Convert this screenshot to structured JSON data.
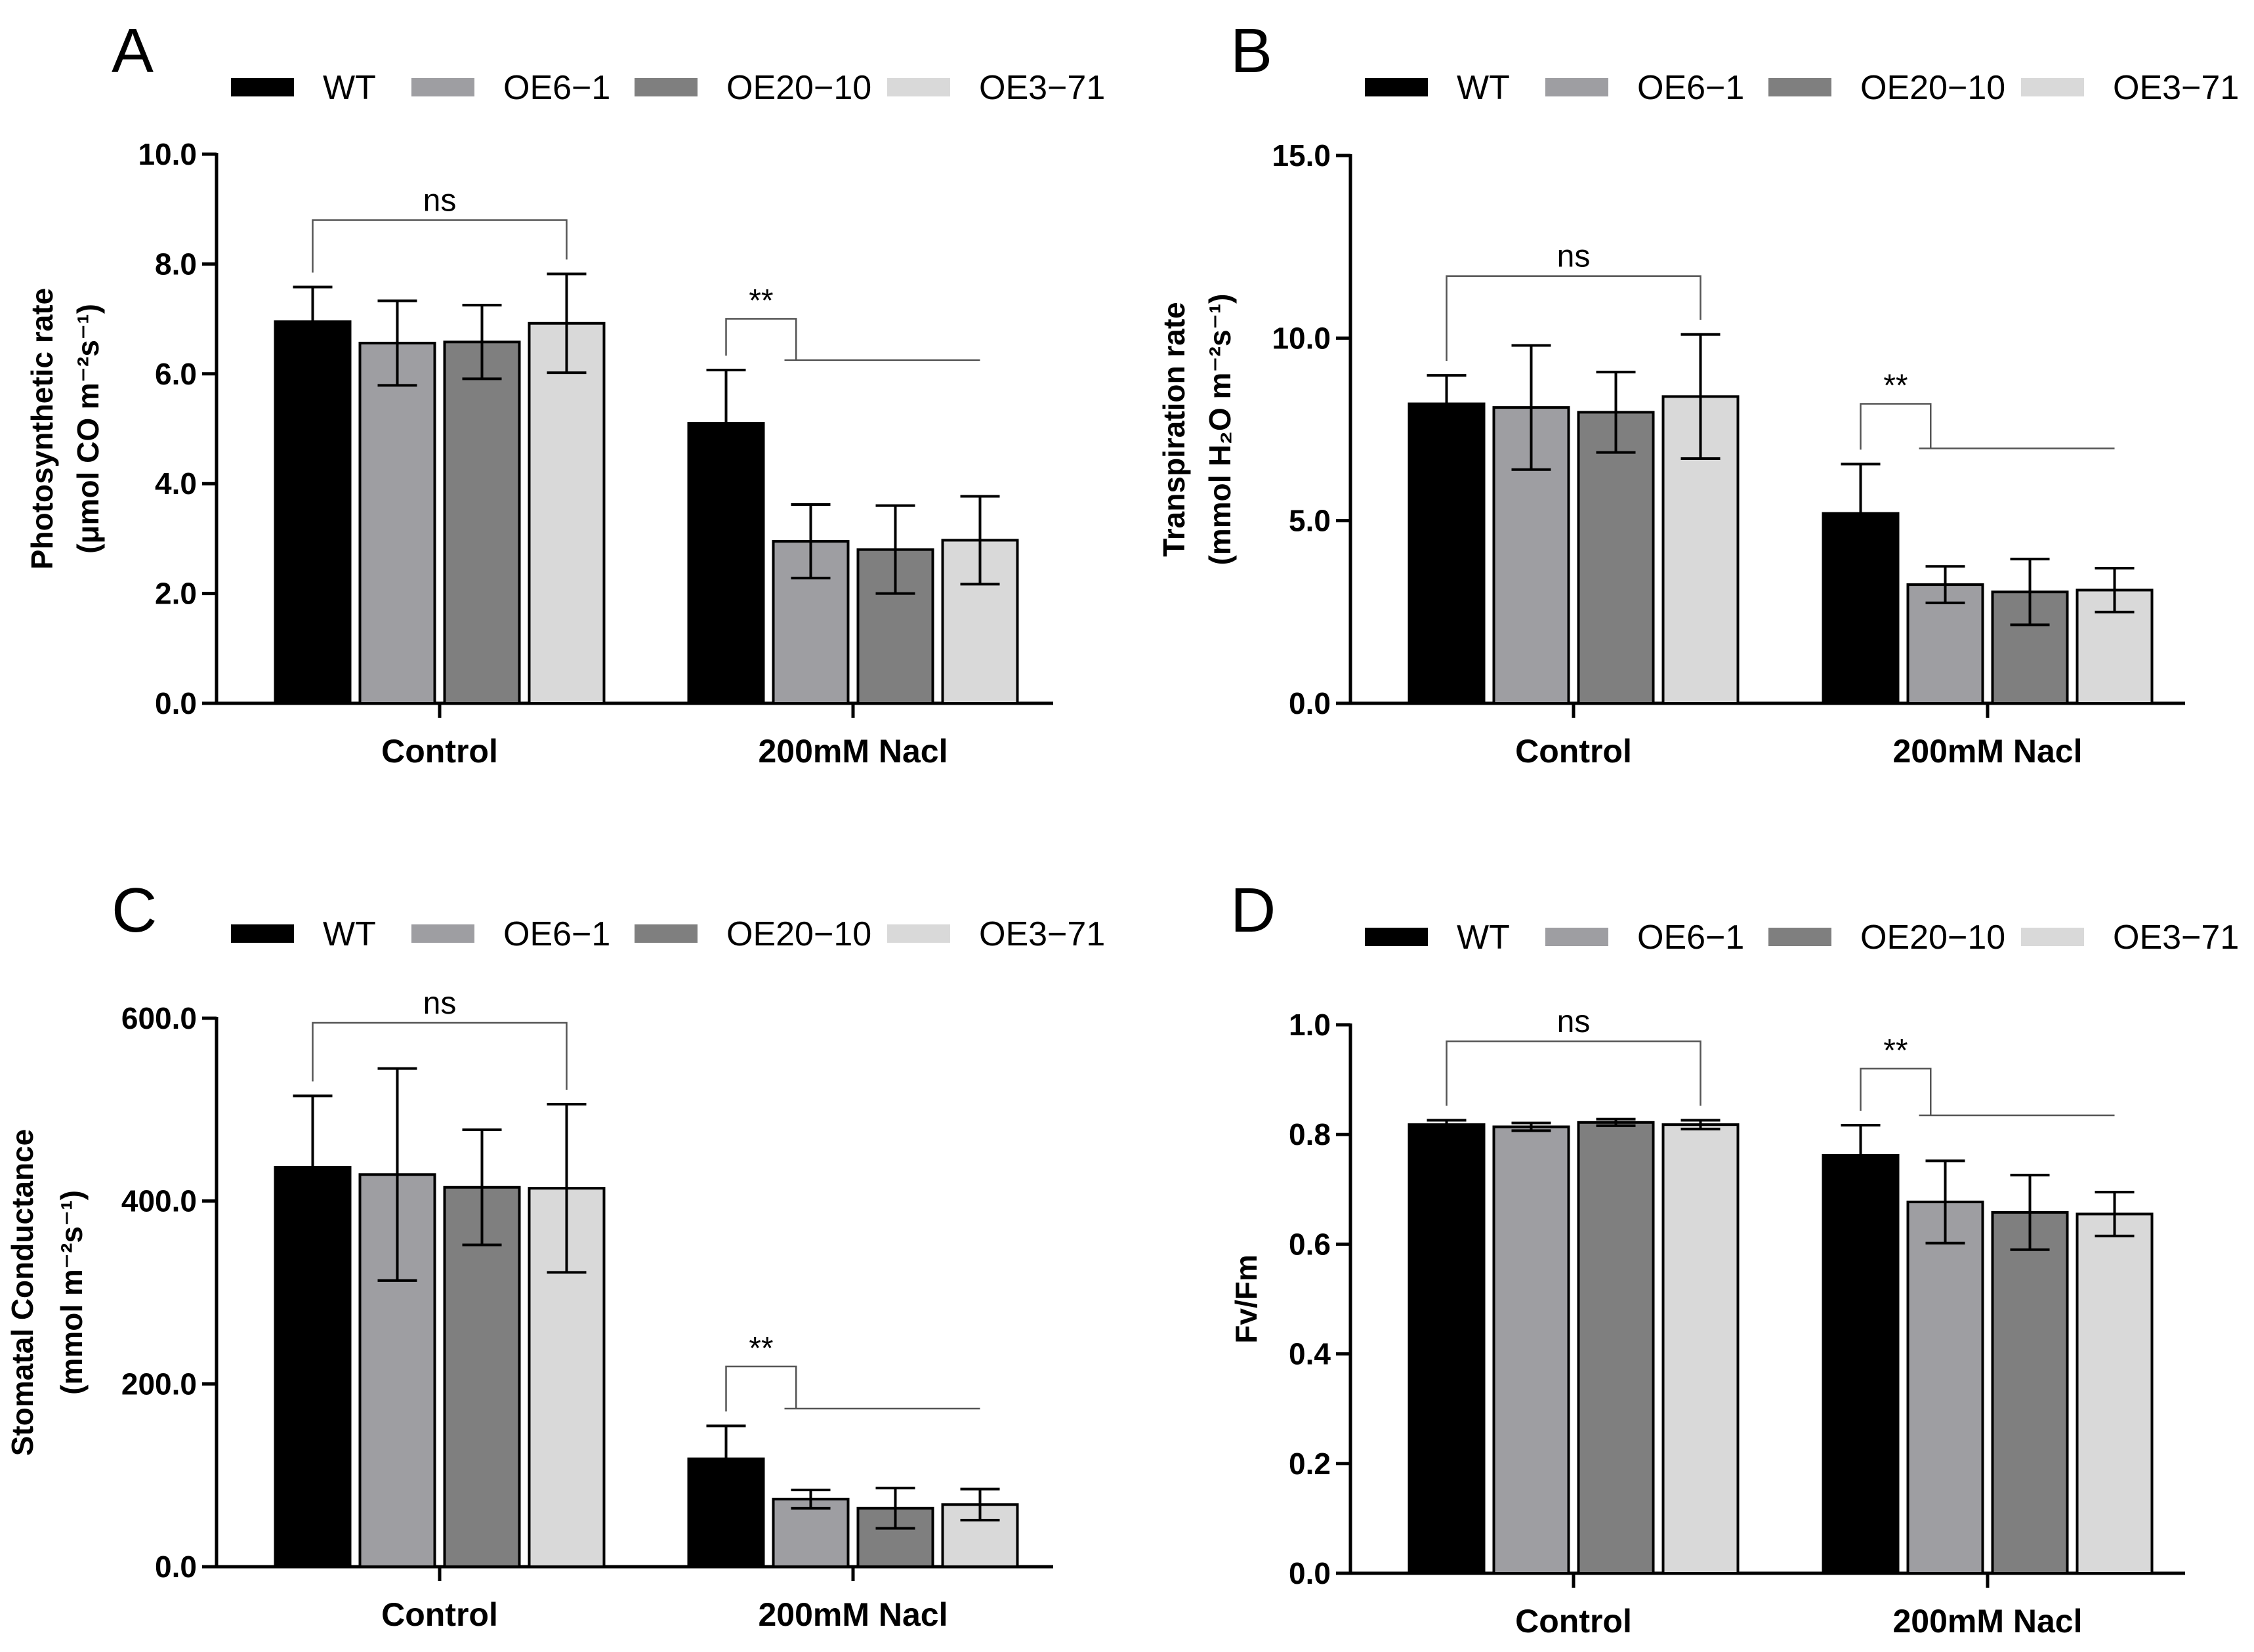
{
  "legend": [
    "WT",
    "OE6−1",
    "OE20−10",
    "OE3−71"
  ],
  "series_colors": [
    "#000000",
    "#9e9ea2",
    "#7f7f7f",
    "#d9d9d9"
  ],
  "chart_data": [
    {
      "panel": "A",
      "type": "bar",
      "categories": [
        "Control",
        "200mM Nacl"
      ],
      "ylabel_lines": [
        "Photosynthetic rate",
        "(μmol CO m⁻²s⁻¹)"
      ],
      "ylim": [
        0,
        10
      ],
      "yticks": [
        0,
        2,
        4,
        6,
        8,
        10
      ],
      "tick_labels": [
        "0.0",
        "2.0",
        "4.0",
        "6.0",
        "8.0",
        "10.0"
      ],
      "series": [
        {
          "name": "WT",
          "values": [
            6.95,
            5.1
          ],
          "errors": [
            0.63,
            0.97
          ]
        },
        {
          "name": "OE6−1",
          "values": [
            6.56,
            2.95
          ],
          "errors": [
            0.77,
            0.67
          ]
        },
        {
          "name": "OE20−10",
          "values": [
            6.58,
            2.8
          ],
          "errors": [
            0.67,
            0.8
          ]
        },
        {
          "name": "OE3−71",
          "values": [
            6.92,
            2.97
          ],
          "errors": [
            0.9,
            0.8
          ]
        }
      ],
      "annotations": [
        {
          "text": "ns",
          "group": 0,
          "type": "bracket",
          "level": 8.8
        },
        {
          "text": "**",
          "group": 1,
          "type": "split",
          "level": 7.0,
          "level2": 6.25
        }
      ]
    },
    {
      "panel": "B",
      "type": "bar",
      "categories": [
        "Control",
        "200mM Nacl"
      ],
      "ylabel_lines": [
        "Transpiration rate",
        "(mmol H₂O m⁻²s⁻¹)"
      ],
      "ylim": [
        0,
        15
      ],
      "yticks": [
        0,
        5,
        10,
        15
      ],
      "tick_labels": [
        "0.0",
        "5.0",
        "10.0",
        "15.0"
      ],
      "series": [
        {
          "name": "WT",
          "values": [
            8.2,
            5.2
          ],
          "errors": [
            0.78,
            1.35
          ]
        },
        {
          "name": "OE6−1",
          "values": [
            8.1,
            3.25
          ],
          "errors": [
            1.7,
            0.5
          ]
        },
        {
          "name": "OE20−10",
          "values": [
            7.97,
            3.05
          ],
          "errors": [
            1.1,
            0.9
          ]
        },
        {
          "name": "OE3−71",
          "values": [
            8.4,
            3.1
          ],
          "errors": [
            1.7,
            0.6
          ]
        }
      ],
      "annotations": [
        {
          "text": "ns",
          "group": 0,
          "type": "bracket",
          "level": 11.7
        },
        {
          "text": "**",
          "group": 1,
          "type": "split",
          "level": 8.2,
          "level2": 6.98
        }
      ]
    },
    {
      "panel": "C",
      "type": "bar",
      "categories": [
        "Control",
        "200mM Nacl"
      ],
      "ylabel_lines": [
        "Stomatal Conductance",
        "(mmol m⁻²s⁻¹)"
      ],
      "ylim": [
        0,
        600
      ],
      "yticks": [
        0,
        200,
        400,
        600
      ],
      "tick_labels": [
        "0.0",
        "200.0",
        "400.0",
        "600.0"
      ],
      "series": [
        {
          "name": "WT",
          "values": [
            437,
            118
          ],
          "errors": [
            78,
            36
          ]
        },
        {
          "name": "OE6−1",
          "values": [
            429,
            74
          ],
          "errors": [
            116,
            10
          ]
        },
        {
          "name": "OE20−10",
          "values": [
            415,
            64
          ],
          "errors": [
            63,
            22
          ]
        },
        {
          "name": "OE3−71",
          "values": [
            414,
            68
          ],
          "errors": [
            92,
            17
          ]
        }
      ],
      "annotations": [
        {
          "text": "ns",
          "group": 0,
          "type": "bracket",
          "level": 595
        },
        {
          "text": "**",
          "group": 1,
          "type": "split",
          "level": 219,
          "level2": 173
        }
      ]
    },
    {
      "panel": "D",
      "type": "bar",
      "categories": [
        "Control",
        "200mM Nacl"
      ],
      "ylabel_lines": [
        "Fv/Fm"
      ],
      "ylim": [
        0,
        1
      ],
      "yticks": [
        0,
        0.2,
        0.4,
        0.6,
        0.8,
        1.0
      ],
      "tick_labels": [
        "0.0",
        "0.2",
        "0.4",
        "0.6",
        "0.8",
        "1.0"
      ],
      "series": [
        {
          "name": "WT",
          "values": [
            0.818,
            0.762
          ],
          "errors": [
            0.008,
            0.055
          ]
        },
        {
          "name": "OE6−1",
          "values": [
            0.814,
            0.677
          ],
          "errors": [
            0.007,
            0.075
          ]
        },
        {
          "name": "OE20−10",
          "values": [
            0.822,
            0.658
          ],
          "errors": [
            0.006,
            0.068
          ]
        },
        {
          "name": "OE3−71",
          "values": [
            0.818,
            0.655
          ],
          "errors": [
            0.008,
            0.04
          ]
        }
      ],
      "annotations": [
        {
          "text": "ns",
          "group": 0,
          "type": "bracket",
          "level": 0.97
        },
        {
          "text": "**",
          "group": 1,
          "type": "split",
          "level": 0.92,
          "level2": 0.835
        }
      ]
    }
  ]
}
